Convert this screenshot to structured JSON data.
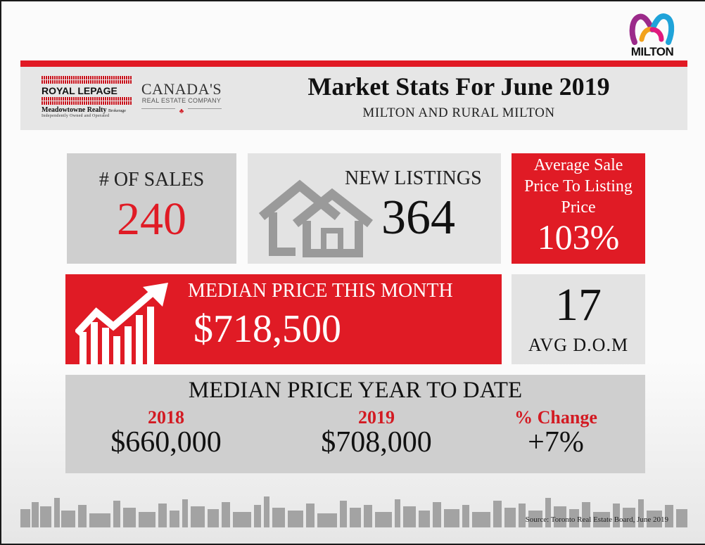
{
  "brand": {
    "city_logo_text": "MILTON",
    "royal_lepage": "ROYAL LEPAGE",
    "brokerage": "Meadowtowne Realty",
    "brokerage_suffix": "Brokerage",
    "tagline": "Independently Owned and Operated",
    "canadas": "CANADA'S",
    "real_estate_company": "REAL ESTATE COMPANY"
  },
  "header": {
    "title": "Market Stats For June 2019",
    "subtitle": "MILTON AND RURAL MILTON"
  },
  "sales": {
    "label": "# OF SALES",
    "value": "240"
  },
  "new_listings": {
    "label": "NEW LISTINGS",
    "value": "364",
    "icon": "houses-icon"
  },
  "avg_sale_to_list": {
    "label": "Average Sale Price To Listing Price",
    "value": "103%"
  },
  "median_month": {
    "label": "MEDIAN PRICE THIS MONTH",
    "value": "$718,500",
    "icon": "rising-bar-chart-icon"
  },
  "dom": {
    "value": "17",
    "label": "AVG D.O.M"
  },
  "ytd": {
    "title": "MEDIAN PRICE YEAR TO DATE",
    "columns": [
      {
        "heading": "2018",
        "value": "$660,000"
      },
      {
        "heading": "2019",
        "value": "$708,000"
      },
      {
        "heading": "% Change",
        "value": "+7%"
      }
    ]
  },
  "source": "Source: Toronto Real Estate Board, June 2019",
  "colors": {
    "accent_red": "#e01b25",
    "panel_grey": "#cfcfcf",
    "panel_light": "#e3e3e3"
  }
}
